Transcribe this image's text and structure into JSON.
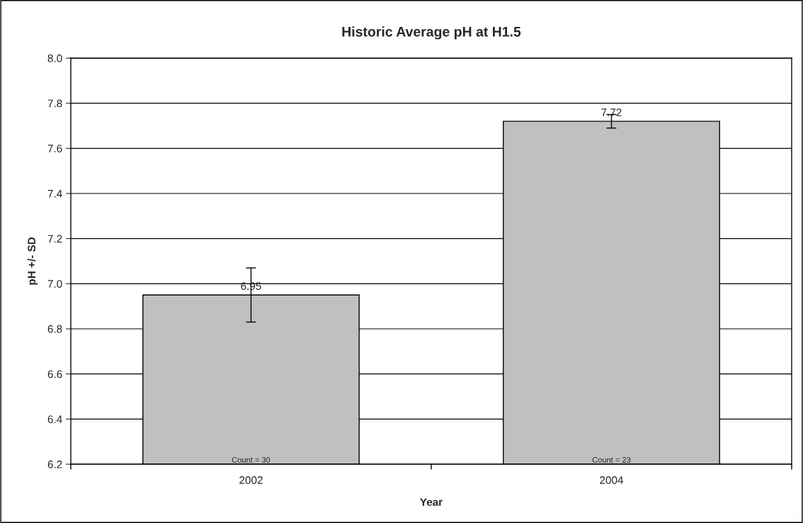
{
  "chart_data": {
    "type": "bar",
    "title": "Historic Average pH at H1.5",
    "xlabel": "Year",
    "ylabel": "pH +/- SD",
    "categories": [
      "2002",
      "2004"
    ],
    "series": [
      {
        "color": "#c0c0c0",
        "values": [
          6.95,
          7.72
        ],
        "errors": [
          0.12,
          0.03
        ]
      }
    ],
    "data_labels": true,
    "annotations": [
      {
        "text": "Count = 30",
        "x": "2002",
        "y": 6.2
      },
      {
        "text": "Count = 23",
        "x": "2004",
        "y": 6.2
      }
    ],
    "ylim": [
      6.2,
      8.0
    ],
    "yticks": [
      {
        "value": 6.2,
        "label": "6.2"
      },
      {
        "value": 6.4,
        "label": "6.4"
      },
      {
        "value": 6.6,
        "label": "6.6"
      },
      {
        "value": 6.8,
        "label": "6.8"
      },
      {
        "value": 7.0,
        "label": "7.0"
      },
      {
        "value": 7.2,
        "label": "7.2"
      },
      {
        "value": 7.4,
        "label": "7.4"
      },
      {
        "value": 7.6,
        "label": "7.6"
      },
      {
        "value": 7.8,
        "label": "7.8"
      },
      {
        "value": 8.0,
        "label": "8.0"
      }
    ],
    "grid": "y",
    "legend": false
  }
}
